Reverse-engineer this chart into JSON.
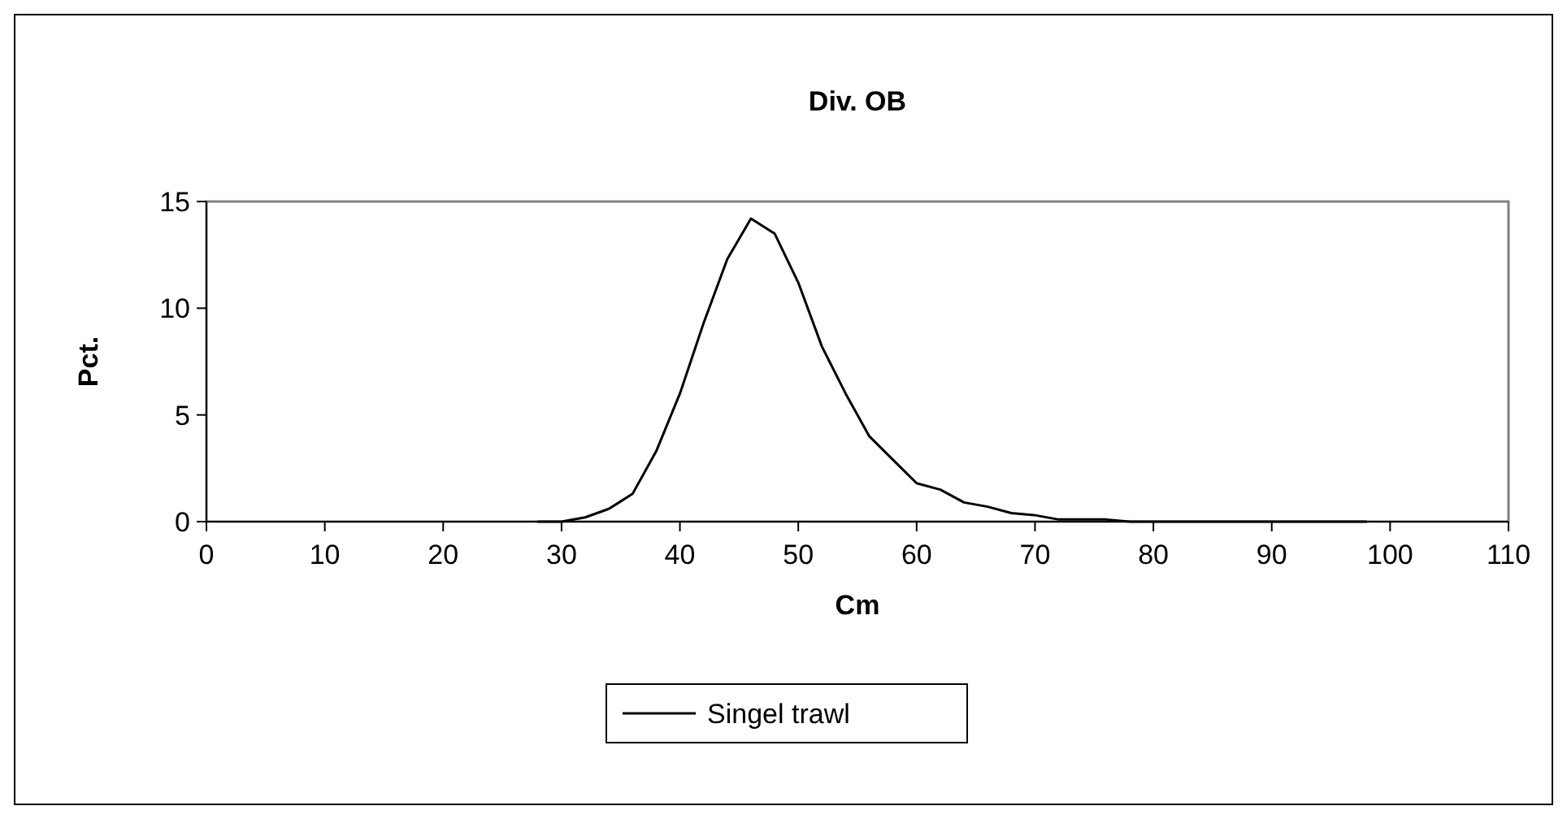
{
  "chart_data": {
    "type": "line",
    "title": "Div. OB",
    "xlabel": "Cm",
    "ylabel": "Pct.",
    "x": [
      28,
      30,
      32,
      34,
      36,
      38,
      40,
      42,
      44,
      46,
      48,
      50,
      52,
      54,
      56,
      58,
      60,
      62,
      64,
      66,
      68,
      70,
      72,
      74,
      76,
      78,
      80,
      82,
      84,
      86,
      88,
      90,
      92,
      94,
      96,
      98
    ],
    "series": [
      {
        "name": "Singel trawl",
        "color": "#000000",
        "values": [
          0,
          0,
          0.2,
          0.6,
          1.3,
          3.3,
          6,
          9.3,
          12.3,
          14.2,
          13.5,
          11.2,
          8.2,
          6,
          4,
          2.9,
          1.8,
          1.5,
          0.9,
          0.7,
          0.4,
          0.3,
          0.1,
          0.1,
          0.1,
          0,
          0,
          0,
          0,
          0,
          0,
          0,
          0,
          0,
          0,
          0
        ]
      }
    ],
    "xlim": [
      0,
      110
    ],
    "xticks": [
      0,
      10,
      20,
      30,
      40,
      50,
      60,
      70,
      80,
      90,
      100,
      110
    ],
    "ylim": [
      0,
      15
    ],
    "yticks": [
      0,
      5,
      10,
      15
    ],
    "grid": false,
    "legend": "bottom",
    "marker": "none",
    "line_style": "solid"
  }
}
